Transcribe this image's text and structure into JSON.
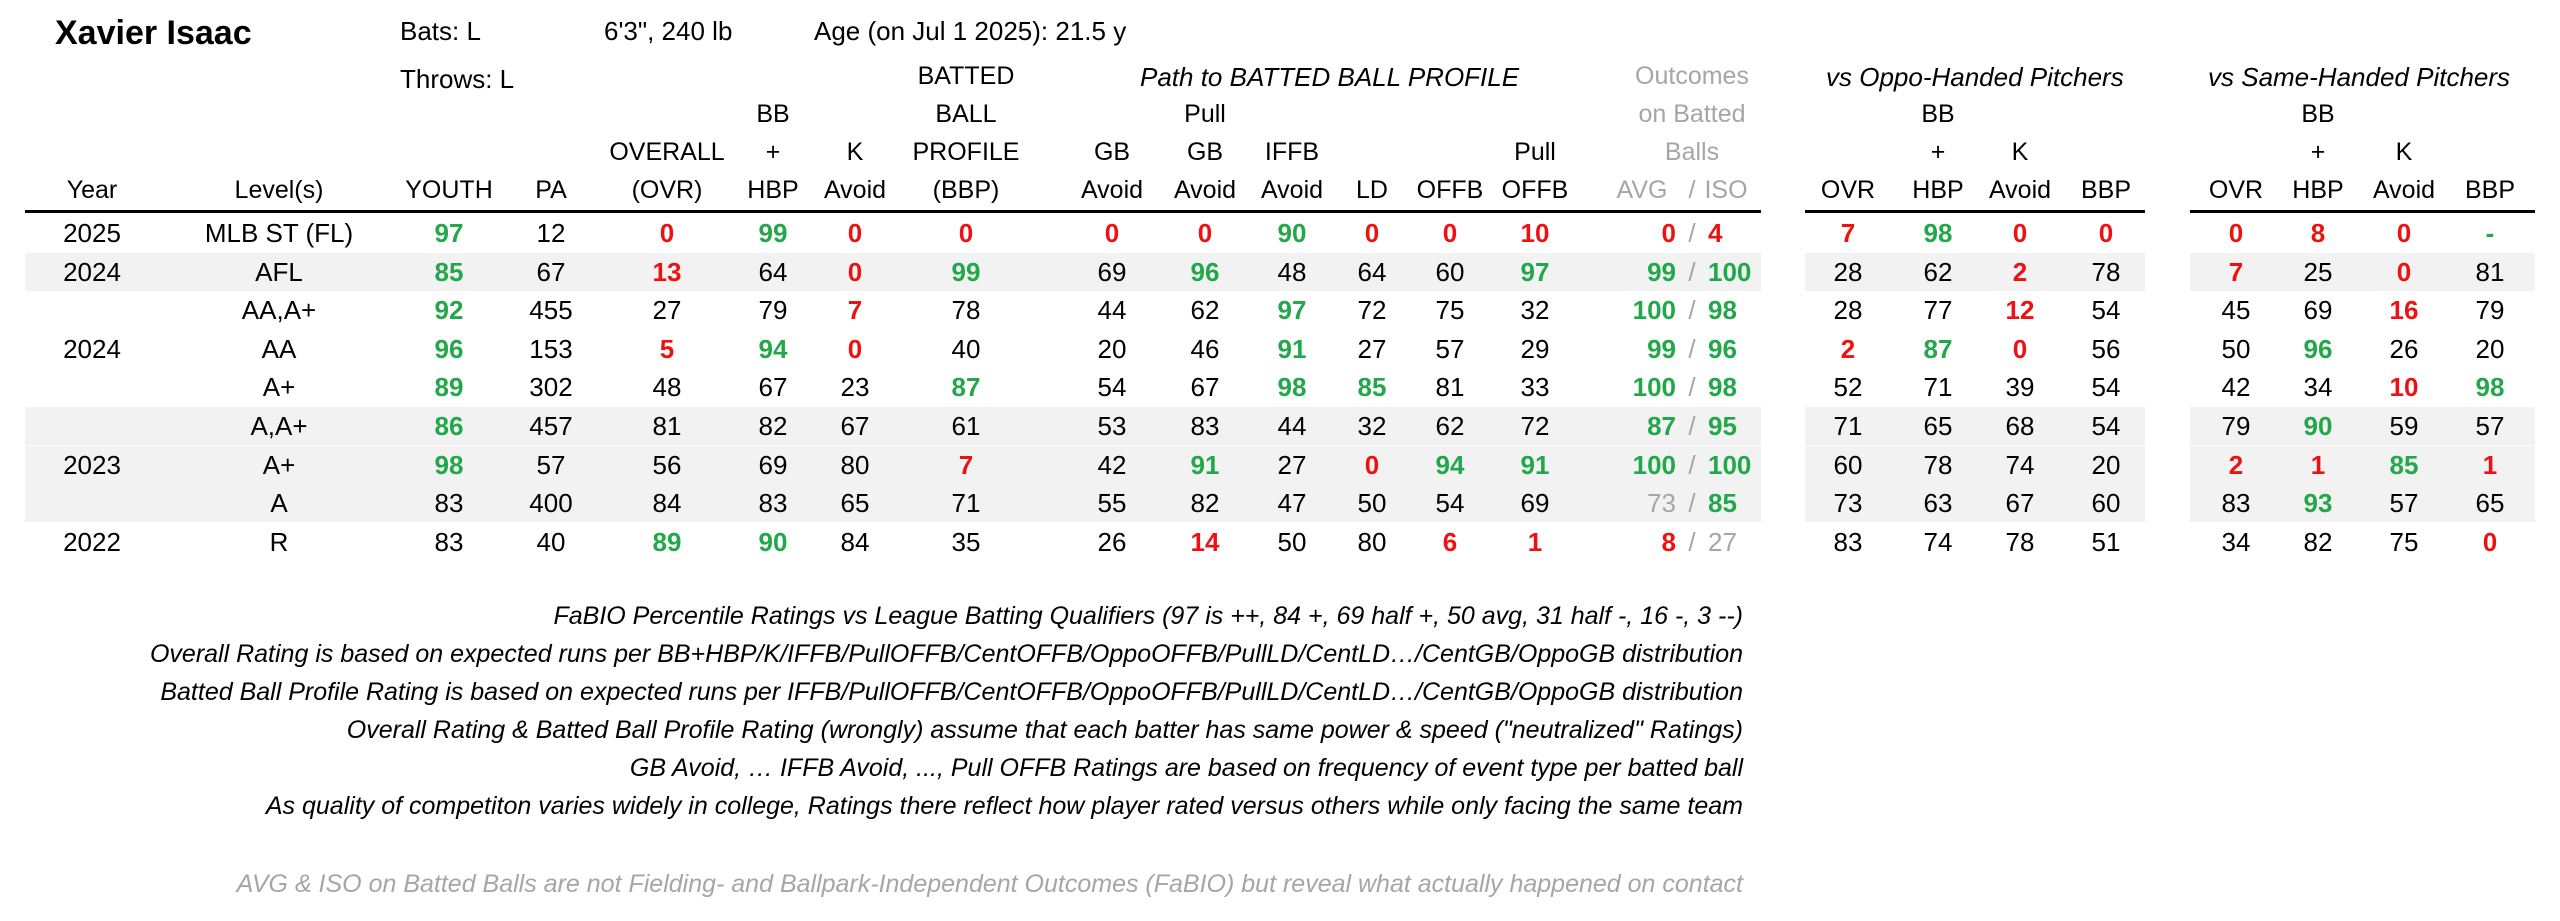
{
  "player": {
    "name": "Xavier Isaac",
    "bats": "Bats: L",
    "throws": "Throws: L",
    "size": "6'3\", 240 lb",
    "age": "Age (on Jul 1 2025): 21.5 y"
  },
  "section_headers": {
    "path": "Path to BATTED BALL PROFILE",
    "outcomes_1": "Outcomes",
    "outcomes_2": "on Batted",
    "outcomes_3": "Balls",
    "vs_oppo": "vs Oppo-Handed Pitchers",
    "vs_same": "vs Same-Handed Pitchers"
  },
  "columns": {
    "year": "Year",
    "levels": "Level(s)",
    "youth": "YOUTH",
    "pa": "PA",
    "overall_1": "OVERALL",
    "overall_2": "(OVR)",
    "bbhbp_1": "BB",
    "bbhbp_2": "+",
    "bbhbp_3": "HBP",
    "kavoid_1": "K",
    "kavoid_2": "Avoid",
    "bbp_1": "BATTED",
    "bbp_2": "BALL",
    "bbp_3": "PROFILE",
    "bbp_4": "(BBP)",
    "gb_1": "GB",
    "gb_2": "Avoid",
    "pullgb_1": "Pull",
    "pullgb_2": "GB",
    "pullgb_3": "Avoid",
    "iffb_1": "IFFB",
    "iffb_2": "Avoid",
    "ld": "LD",
    "offb": "OFFB",
    "pulloffb_1": "Pull",
    "pulloffb_2": "OFFB",
    "avg": "AVG",
    "slash": "/",
    "iso": "ISO",
    "ovr": "OVR",
    "bb": "BB",
    "plus": "+",
    "hbp": "HBP",
    "k": "K",
    "avoid": "Avoid",
    "bbp": "BBP"
  },
  "rows": [
    {
      "year": "2025",
      "level": "MLB ST (FL)",
      "band": false,
      "cells": [
        [
          "97",
          "g"
        ],
        [
          "12",
          ""
        ],
        [
          "0",
          "r"
        ],
        [
          "99",
          "g"
        ],
        [
          "0",
          "r"
        ],
        [
          "0",
          "r"
        ],
        [
          "0",
          "r"
        ],
        [
          "0",
          "r"
        ],
        [
          "90",
          "g"
        ],
        [
          "0",
          "r"
        ],
        [
          "0",
          "r"
        ],
        [
          "10",
          "r"
        ],
        [
          "0",
          "r"
        ],
        [
          "4",
          "r"
        ],
        [
          "7",
          "r"
        ],
        [
          "98",
          "g"
        ],
        [
          "0",
          "r"
        ],
        [
          "0",
          "r"
        ],
        [
          "0",
          "r"
        ],
        [
          "8",
          "r"
        ],
        [
          "0",
          "r"
        ],
        [
          "-",
          "g"
        ]
      ]
    },
    {
      "year": "2024",
      "level": "AFL",
      "band": true,
      "cells": [
        [
          "85",
          "g"
        ],
        [
          "67",
          ""
        ],
        [
          "13",
          "r"
        ],
        [
          "64",
          ""
        ],
        [
          "0",
          "r"
        ],
        [
          "99",
          "g"
        ],
        [
          "69",
          ""
        ],
        [
          "96",
          "g"
        ],
        [
          "48",
          ""
        ],
        [
          "64",
          ""
        ],
        [
          "60",
          ""
        ],
        [
          "97",
          "g"
        ],
        [
          "99",
          "g"
        ],
        [
          "100",
          "g"
        ],
        [
          "28",
          ""
        ],
        [
          "62",
          ""
        ],
        [
          "2",
          "r"
        ],
        [
          "78",
          ""
        ],
        [
          "7",
          "r"
        ],
        [
          "25",
          ""
        ],
        [
          "0",
          "r"
        ],
        [
          "81",
          ""
        ]
      ]
    },
    {
      "year": "",
      "level": "AA,A+",
      "band": false,
      "cells": [
        [
          "92",
          "g"
        ],
        [
          "455",
          ""
        ],
        [
          "27",
          ""
        ],
        [
          "79",
          ""
        ],
        [
          "7",
          "r"
        ],
        [
          "78",
          ""
        ],
        [
          "44",
          ""
        ],
        [
          "62",
          ""
        ],
        [
          "97",
          "g"
        ],
        [
          "72",
          ""
        ],
        [
          "75",
          ""
        ],
        [
          "32",
          ""
        ],
        [
          "100",
          "g"
        ],
        [
          "98",
          "g"
        ],
        [
          "28",
          ""
        ],
        [
          "77",
          ""
        ],
        [
          "12",
          "r"
        ],
        [
          "54",
          ""
        ],
        [
          "45",
          ""
        ],
        [
          "69",
          ""
        ],
        [
          "16",
          "r"
        ],
        [
          "79",
          ""
        ]
      ]
    },
    {
      "year": "2024",
      "level": "AA",
      "band": false,
      "cells": [
        [
          "96",
          "g"
        ],
        [
          "153",
          ""
        ],
        [
          "5",
          "r"
        ],
        [
          "94",
          "g"
        ],
        [
          "0",
          "r"
        ],
        [
          "40",
          ""
        ],
        [
          "20",
          ""
        ],
        [
          "46",
          ""
        ],
        [
          "91",
          "g"
        ],
        [
          "27",
          ""
        ],
        [
          "57",
          ""
        ],
        [
          "29",
          ""
        ],
        [
          "99",
          "g"
        ],
        [
          "96",
          "g"
        ],
        [
          "2",
          "r"
        ],
        [
          "87",
          "g"
        ],
        [
          "0",
          "r"
        ],
        [
          "56",
          ""
        ],
        [
          "50",
          ""
        ],
        [
          "96",
          "g"
        ],
        [
          "26",
          ""
        ],
        [
          "20",
          ""
        ]
      ]
    },
    {
      "year": "",
      "level": "A+",
      "band": false,
      "cells": [
        [
          "89",
          "g"
        ],
        [
          "302",
          ""
        ],
        [
          "48",
          ""
        ],
        [
          "67",
          ""
        ],
        [
          "23",
          ""
        ],
        [
          "87",
          "g"
        ],
        [
          "54",
          ""
        ],
        [
          "67",
          ""
        ],
        [
          "98",
          "g"
        ],
        [
          "85",
          "g"
        ],
        [
          "81",
          ""
        ],
        [
          "33",
          ""
        ],
        [
          "100",
          "g"
        ],
        [
          "98",
          "g"
        ],
        [
          "52",
          ""
        ],
        [
          "71",
          ""
        ],
        [
          "39",
          ""
        ],
        [
          "54",
          ""
        ],
        [
          "42",
          ""
        ],
        [
          "34",
          ""
        ],
        [
          "10",
          "r"
        ],
        [
          "98",
          "g"
        ]
      ]
    },
    {
      "year": "",
      "level": "A,A+",
      "band": true,
      "cells": [
        [
          "86",
          "g"
        ],
        [
          "457",
          ""
        ],
        [
          "81",
          ""
        ],
        [
          "82",
          ""
        ],
        [
          "67",
          ""
        ],
        [
          "61",
          ""
        ],
        [
          "53",
          ""
        ],
        [
          "83",
          ""
        ],
        [
          "44",
          ""
        ],
        [
          "32",
          ""
        ],
        [
          "62",
          ""
        ],
        [
          "72",
          ""
        ],
        [
          "87",
          "g"
        ],
        [
          "95",
          "g"
        ],
        [
          "71",
          ""
        ],
        [
          "65",
          ""
        ],
        [
          "68",
          ""
        ],
        [
          "54",
          ""
        ],
        [
          "79",
          ""
        ],
        [
          "90",
          "g"
        ],
        [
          "59",
          ""
        ],
        [
          "57",
          ""
        ]
      ]
    },
    {
      "year": "2023",
      "level": "A+",
      "band": true,
      "cells": [
        [
          "98",
          "g"
        ],
        [
          "57",
          ""
        ],
        [
          "56",
          ""
        ],
        [
          "69",
          ""
        ],
        [
          "80",
          ""
        ],
        [
          "7",
          "r"
        ],
        [
          "42",
          ""
        ],
        [
          "91",
          "g"
        ],
        [
          "27",
          ""
        ],
        [
          "0",
          "r"
        ],
        [
          "94",
          "g"
        ],
        [
          "91",
          "g"
        ],
        [
          "100",
          "g"
        ],
        [
          "100",
          "g"
        ],
        [
          "60",
          ""
        ],
        [
          "78",
          ""
        ],
        [
          "74",
          ""
        ],
        [
          "20",
          ""
        ],
        [
          "2",
          "r"
        ],
        [
          "1",
          "r"
        ],
        [
          "85",
          "g"
        ],
        [
          "1",
          "r"
        ]
      ]
    },
    {
      "year": "",
      "level": "A",
      "band": true,
      "cells": [
        [
          "83",
          ""
        ],
        [
          "400",
          ""
        ],
        [
          "84",
          ""
        ],
        [
          "83",
          ""
        ],
        [
          "65",
          ""
        ],
        [
          "71",
          ""
        ],
        [
          "55",
          ""
        ],
        [
          "82",
          ""
        ],
        [
          "47",
          ""
        ],
        [
          "50",
          ""
        ],
        [
          "54",
          ""
        ],
        [
          "69",
          ""
        ],
        [
          "73",
          "gr"
        ],
        [
          "85",
          "g"
        ],
        [
          "73",
          ""
        ],
        [
          "63",
          ""
        ],
        [
          "67",
          ""
        ],
        [
          "60",
          ""
        ],
        [
          "83",
          ""
        ],
        [
          "93",
          "g"
        ],
        [
          "57",
          ""
        ],
        [
          "65",
          ""
        ]
      ]
    },
    {
      "year": "2022",
      "level": "R",
      "band": false,
      "cells": [
        [
          "83",
          ""
        ],
        [
          "40",
          ""
        ],
        [
          "89",
          "g"
        ],
        [
          "90",
          "g"
        ],
        [
          "84",
          ""
        ],
        [
          "35",
          ""
        ],
        [
          "26",
          ""
        ],
        [
          "14",
          "r"
        ],
        [
          "50",
          ""
        ],
        [
          "80",
          ""
        ],
        [
          "6",
          "r"
        ],
        [
          "1",
          "r"
        ],
        [
          "8",
          "r"
        ],
        [
          "27",
          "gr"
        ],
        [
          "83",
          ""
        ],
        [
          "74",
          ""
        ],
        [
          "78",
          ""
        ],
        [
          "51",
          ""
        ],
        [
          "34",
          ""
        ],
        [
          "82",
          ""
        ],
        [
          "75",
          ""
        ],
        [
          "0",
          "r"
        ]
      ]
    }
  ],
  "notes": [
    "FaBIO Percentile Ratings vs League Batting Qualifiers (97 is ++, 84 +, 69 half +, 50 avg, 31 half -, 16 -, 3 --)",
    "Overall Rating is based on expected runs per BB+HBP/K/IFFB/PullOFFB/CentOFFB/OppoOFFB/PullLD/CentLD…/CentGB/OppoGB distribution",
    "Batted Ball Profile Rating is based on expected runs per IFFB/PullOFFB/CentOFFB/OppoOFFB/PullLD/CentLD…/CentGB/OppoGB distribution",
    "Overall Rating & Batted Ball Profile Rating (wrongly) assume that each batter has same power & speed (\"neutralized\" Ratings)",
    "GB Avoid, … IFFB Avoid, ..., Pull OFFB Ratings are based on frequency of event type per batted ball",
    "As quality of competiton varies widely in college, Ratings there reflect how player rated versus others while only facing the same team"
  ],
  "footnote": "AVG & ISO on Batted Balls are not Fielding- and Ballpark-Independent Outcomes (FaBIO) but reveal what actually happened on contact",
  "colors": {
    "green": "#22a84a",
    "red": "#ee1111",
    "gray": "#a6a6a6",
    "band": "#f2f2f2"
  }
}
